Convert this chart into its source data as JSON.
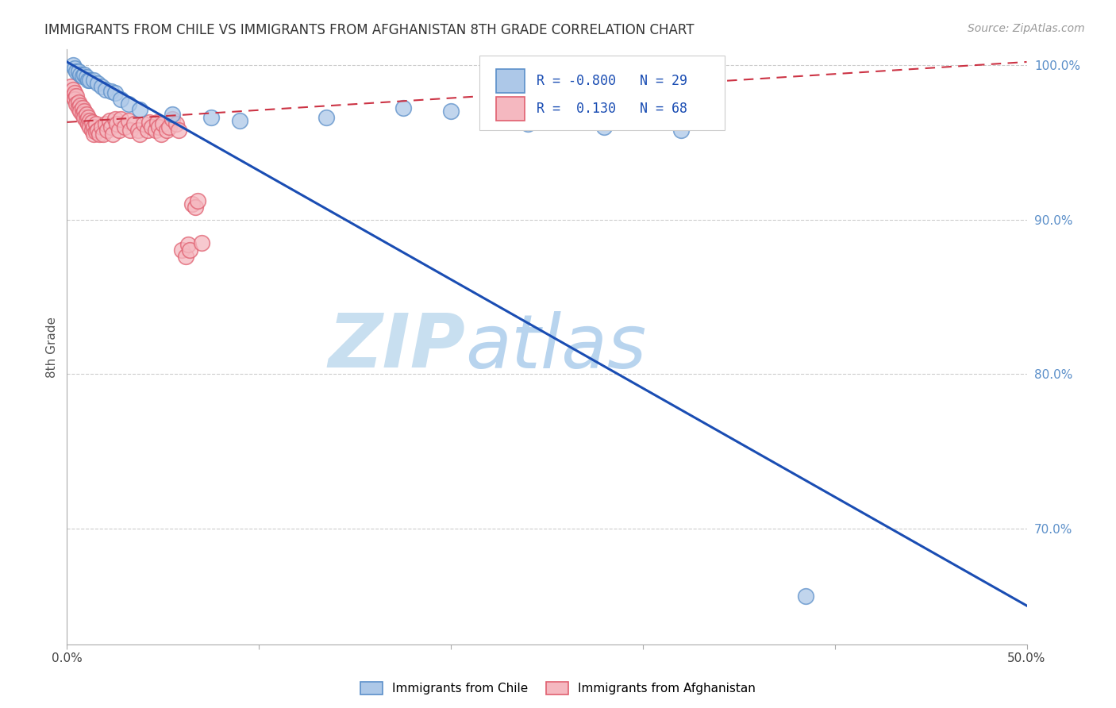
{
  "title": "IMMIGRANTS FROM CHILE VS IMMIGRANTS FROM AFGHANISTAN 8TH GRADE CORRELATION CHART",
  "source": "Source: ZipAtlas.com",
  "ylabel_left": "8th Grade",
  "xlabel_legend1": "Immigrants from Chile",
  "xlabel_legend2": "Immigrants from Afghanistan",
  "xmin": 0.0,
  "xmax": 0.5,
  "ymin": 0.625,
  "ymax": 1.01,
  "right_yticks": [
    1.0,
    0.9,
    0.8,
    0.7
  ],
  "right_yticklabels": [
    "100.0%",
    "90.0%",
    "80.0%",
    "70.0%"
  ],
  "xticks": [
    0.0,
    0.1,
    0.2,
    0.3,
    0.4,
    0.5
  ],
  "xticklabels": [
    "0.0%",
    "",
    "",
    "",
    "",
    "50.0%"
  ],
  "grid_color": "#cccccc",
  "watermark_line1": "ZIP",
  "watermark_line2": "atlas",
  "watermark_color": "#c8dff0",
  "R_chile": -0.8,
  "N_chile": 29,
  "R_afghanistan": 0.13,
  "N_afghanistan": 68,
  "chile_color": "#5b8fc9",
  "chile_fill": "#adc8e8",
  "afghanistan_color": "#e06070",
  "afghanistan_fill": "#f5b8c0",
  "blue_line_color": "#1a4db3",
  "pink_line_color": "#cc3344",
  "chile_line_x0": 0.0,
  "chile_line_y0": 1.002,
  "chile_line_x1": 0.5,
  "chile_line_y1": 0.65,
  "afg_line_x0": 0.0,
  "afg_line_y0": 0.963,
  "afg_line_x1": 0.5,
  "afg_line_y1": 1.002,
  "chile_scatter_x": [
    0.003,
    0.004,
    0.005,
    0.006,
    0.007,
    0.008,
    0.009,
    0.01,
    0.011,
    0.012,
    0.014,
    0.016,
    0.018,
    0.02,
    0.023,
    0.025,
    0.028,
    0.032,
    0.038,
    0.055,
    0.075,
    0.09,
    0.135,
    0.175,
    0.2,
    0.24,
    0.28,
    0.32,
    0.385
  ],
  "chile_scatter_y": [
    1.0,
    0.998,
    0.996,
    0.996,
    0.994,
    0.993,
    0.994,
    0.992,
    0.99,
    0.99,
    0.99,
    0.988,
    0.986,
    0.984,
    0.983,
    0.982,
    0.978,
    0.975,
    0.971,
    0.968,
    0.966,
    0.964,
    0.966,
    0.972,
    0.97,
    0.962,
    0.96,
    0.958,
    0.656
  ],
  "afghanistan_scatter_x": [
    0.002,
    0.003,
    0.003,
    0.004,
    0.004,
    0.005,
    0.005,
    0.006,
    0.006,
    0.007,
    0.007,
    0.008,
    0.008,
    0.009,
    0.009,
    0.01,
    0.01,
    0.011,
    0.011,
    0.012,
    0.012,
    0.013,
    0.013,
    0.014,
    0.014,
    0.015,
    0.015,
    0.016,
    0.017,
    0.018,
    0.019,
    0.02,
    0.021,
    0.022,
    0.023,
    0.024,
    0.025,
    0.026,
    0.027,
    0.028,
    0.03,
    0.032,
    0.033,
    0.035,
    0.037,
    0.038,
    0.04,
    0.042,
    0.043,
    0.044,
    0.046,
    0.047,
    0.048,
    0.049,
    0.05,
    0.052,
    0.053,
    0.055,
    0.057,
    0.058,
    0.06,
    0.062,
    0.063,
    0.064,
    0.065,
    0.067,
    0.068,
    0.07
  ],
  "afghanistan_scatter_y": [
    0.986,
    0.984,
    0.98,
    0.982,
    0.978,
    0.98,
    0.975,
    0.976,
    0.972,
    0.974,
    0.97,
    0.972,
    0.968,
    0.97,
    0.966,
    0.968,
    0.964,
    0.966,
    0.962,
    0.964,
    0.96,
    0.958,
    0.963,
    0.96,
    0.955,
    0.962,
    0.957,
    0.958,
    0.955,
    0.96,
    0.955,
    0.962,
    0.958,
    0.964,
    0.96,
    0.955,
    0.965,
    0.962,
    0.958,
    0.965,
    0.96,
    0.964,
    0.958,
    0.962,
    0.958,
    0.955,
    0.962,
    0.958,
    0.963,
    0.96,
    0.958,
    0.963,
    0.96,
    0.955,
    0.962,
    0.958,
    0.96,
    0.965,
    0.962,
    0.958,
    0.88,
    0.876,
    0.884,
    0.88,
    0.91,
    0.908,
    0.912,
    0.885
  ]
}
